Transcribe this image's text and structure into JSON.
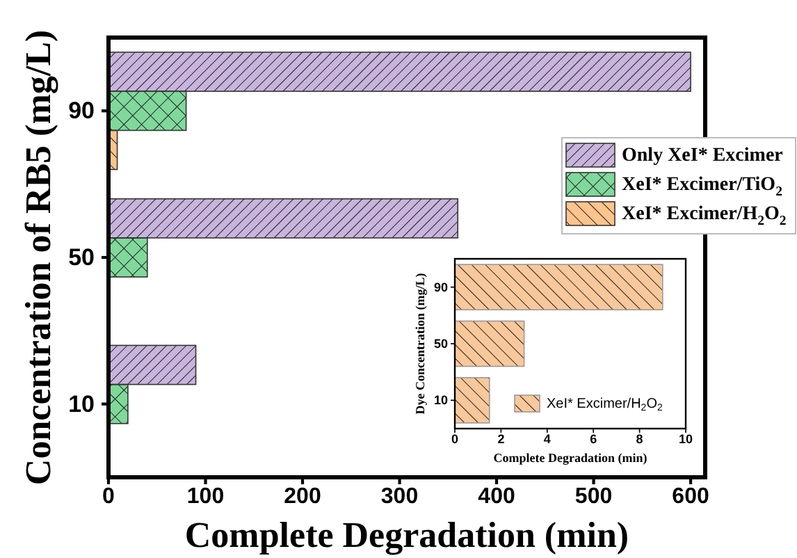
{
  "chart_data": [
    {
      "type": "bar",
      "orientation": "horizontal",
      "xlabel": "Complete Degradation (min)",
      "ylabel": "Concentration of RB5 (mg/L)",
      "categories": [
        "90",
        "50",
        "10"
      ],
      "series": [
        {
          "name": "Only XeI* Excimer",
          "color": "#c8b4dc",
          "values": [
            600,
            360,
            90
          ]
        },
        {
          "name": "XeI* Excimer/TiO$_{2}$",
          "color": "#7fd99a",
          "values": [
            80,
            40,
            20
          ]
        },
        {
          "name": "XeI* Excimer/H$_{2}$O$_{2}$",
          "color": "#ffc48c",
          "values": [
            9,
            null,
            null
          ]
        }
      ],
      "xlim": [
        0,
        615
      ],
      "xticks": [
        0,
        100,
        200,
        300,
        400,
        500,
        600
      ],
      "legend": "right"
    },
    {
      "type": "bar",
      "orientation": "horizontal",
      "xlabel": "Complete Degradation (min)",
      "ylabel": "Dye Concentration (mg/L)",
      "categories": [
        "90",
        "50",
        "10"
      ],
      "series": [
        {
          "name": "XeI* Excimer/H$_{2}$O$_{2}$",
          "color": "#f9c89a",
          "values": [
            9,
            3,
            1.5
          ]
        }
      ],
      "xlim": [
        0,
        10
      ],
      "xticks": [
        0,
        2,
        4,
        6,
        8,
        10
      ],
      "legend": "bottom right"
    }
  ]
}
